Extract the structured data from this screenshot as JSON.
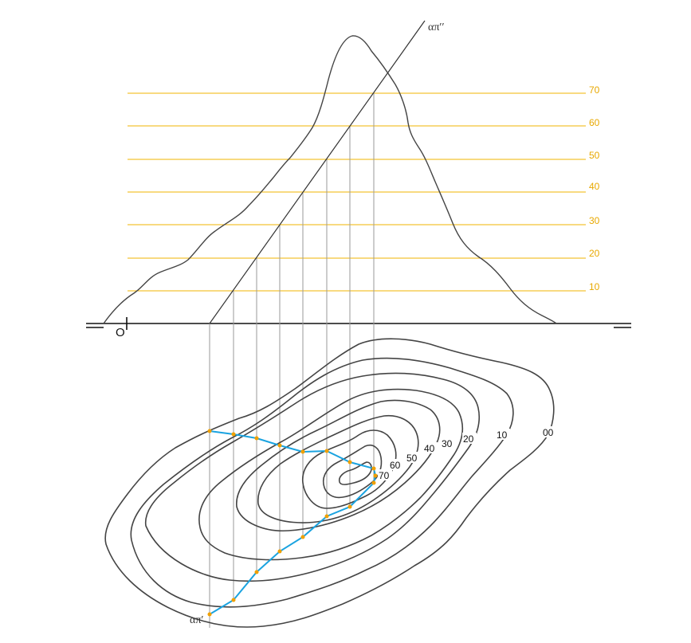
{
  "diagram": {
    "trace_front_label": "απ′′",
    "trace_top_label": "απ′",
    "origin_label": "O",
    "level_labels": [
      "10",
      "20",
      "30",
      "40",
      "50",
      "60",
      "70"
    ],
    "contour_labels": [
      "00",
      "10",
      "20",
      "30",
      "40",
      "50",
      "60",
      "70"
    ]
  },
  "colors": {
    "level_lines": "#f0b400",
    "profile": "#444444",
    "section_polyline": "#1aa3e0",
    "intersection_marks": "#f0a000",
    "projection_lines": "#999999"
  }
}
